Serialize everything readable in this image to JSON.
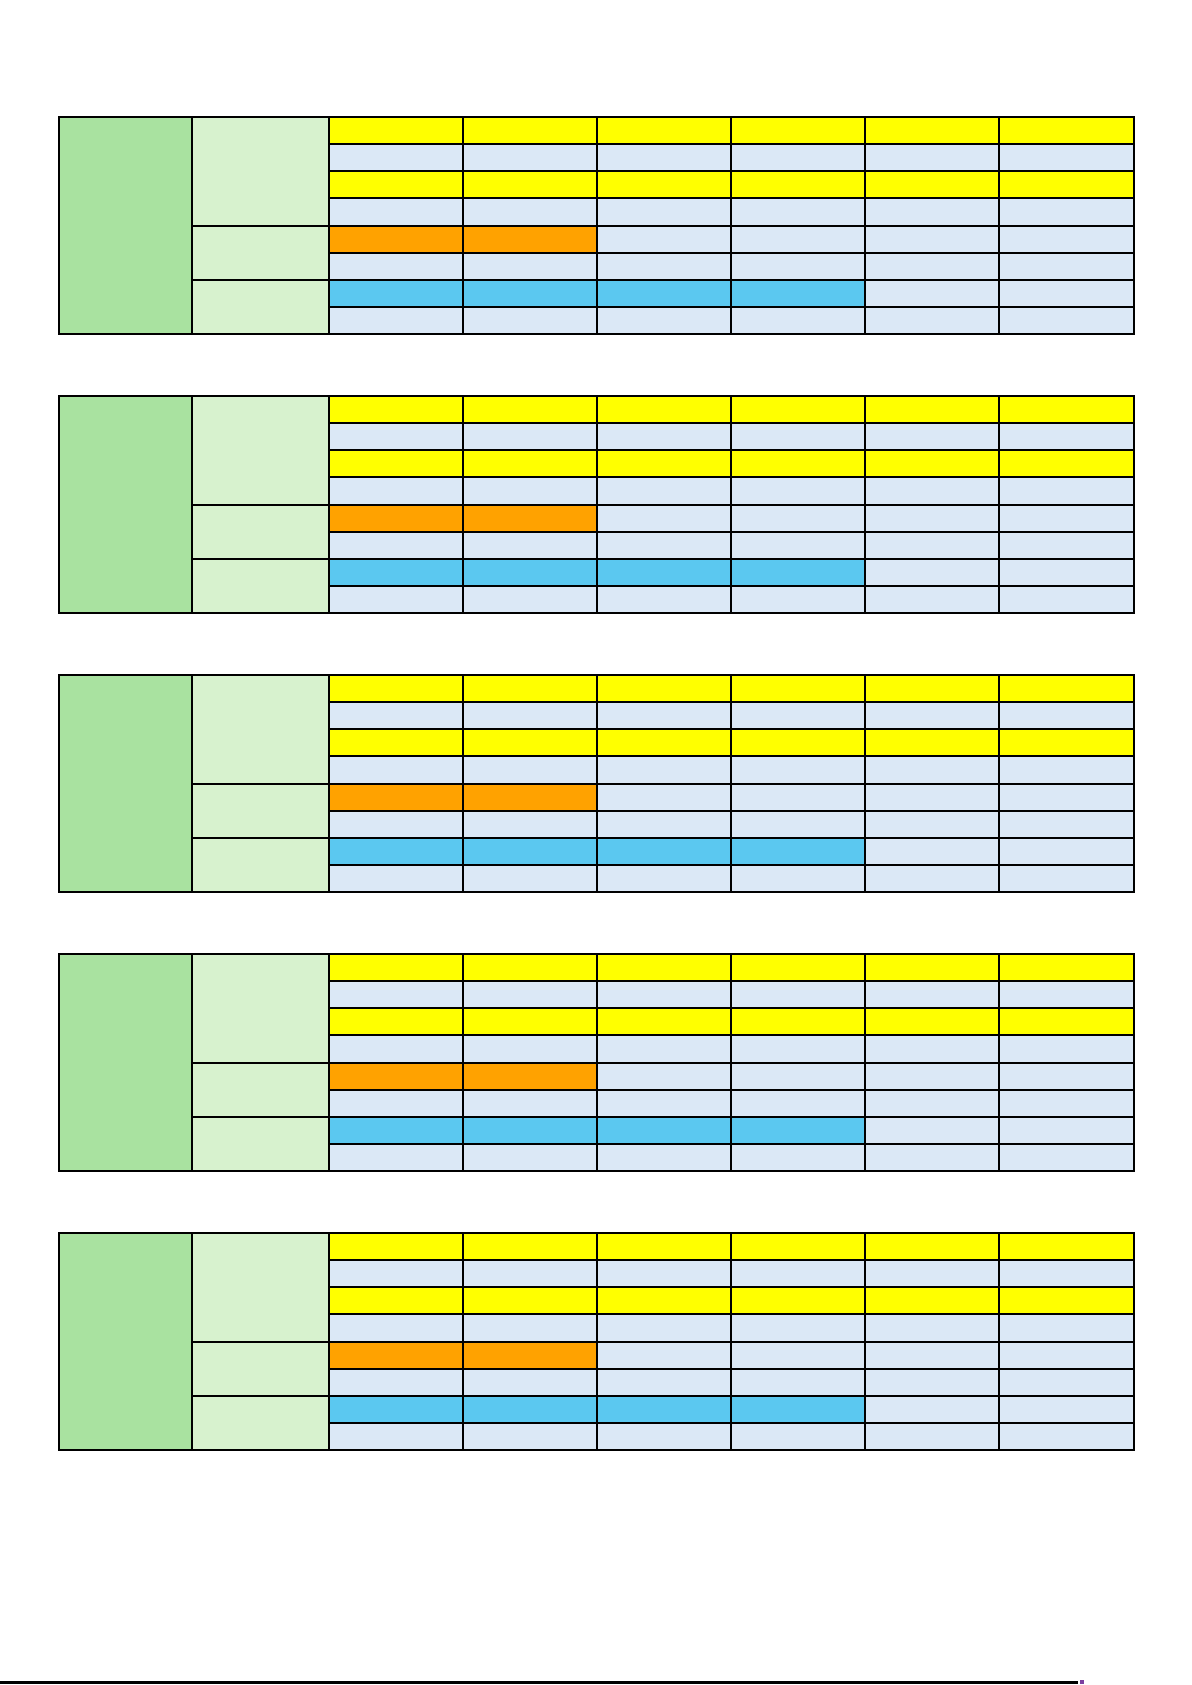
{
  "page": {
    "background_color": "#FFFFFF"
  },
  "palette": {
    "rowLabel": "#A9E2A0",
    "groupLabel": "#D7F2CE",
    "yellow": "#FFFF00",
    "lightBlue": "#DBE8F6",
    "orange": "#FFA200",
    "cyan": "#5BC8F0",
    "border": "#000000"
  },
  "grid_template": {
    "data_column_count": 6,
    "label_column": {
      "span_rows": 8,
      "color_key": "rowLabel"
    },
    "row_groups": [
      {
        "span_rows": 4,
        "color_key": "groupLabel"
      },
      {
        "span_rows": 2,
        "color_key": "groupLabel"
      },
      {
        "span_rows": 2,
        "color_key": "groupLabel"
      }
    ],
    "rows": [
      {
        "cells": [
          "yellow",
          "yellow",
          "yellow",
          "yellow",
          "yellow",
          "yellow"
        ]
      },
      {
        "cells": [
          "lightBlue",
          "lightBlue",
          "lightBlue",
          "lightBlue",
          "lightBlue",
          "lightBlue"
        ]
      },
      {
        "cells": [
          "yellow",
          "yellow",
          "yellow",
          "yellow",
          "yellow",
          "yellow"
        ]
      },
      {
        "cells": [
          "lightBlue",
          "lightBlue",
          "lightBlue",
          "lightBlue",
          "lightBlue",
          "lightBlue"
        ]
      },
      {
        "cells": [
          "orange",
          "orange",
          "lightBlue",
          "lightBlue",
          "lightBlue",
          "lightBlue"
        ]
      },
      {
        "cells": [
          "lightBlue",
          "lightBlue",
          "lightBlue",
          "lightBlue",
          "lightBlue",
          "lightBlue"
        ]
      },
      {
        "cells": [
          "cyan",
          "cyan",
          "cyan",
          "cyan",
          "lightBlue",
          "lightBlue"
        ]
      },
      {
        "cells": [
          "lightBlue",
          "lightBlue",
          "lightBlue",
          "lightBlue",
          "lightBlue",
          "lightBlue"
        ]
      }
    ]
  },
  "tables": [
    {
      "id": "block-1"
    },
    {
      "id": "block-2"
    },
    {
      "id": "block-3"
    },
    {
      "id": "block-4"
    },
    {
      "id": "block-5"
    }
  ],
  "footer": {
    "rule_color": "#000000",
    "mark_color": "#7B3FA0"
  }
}
